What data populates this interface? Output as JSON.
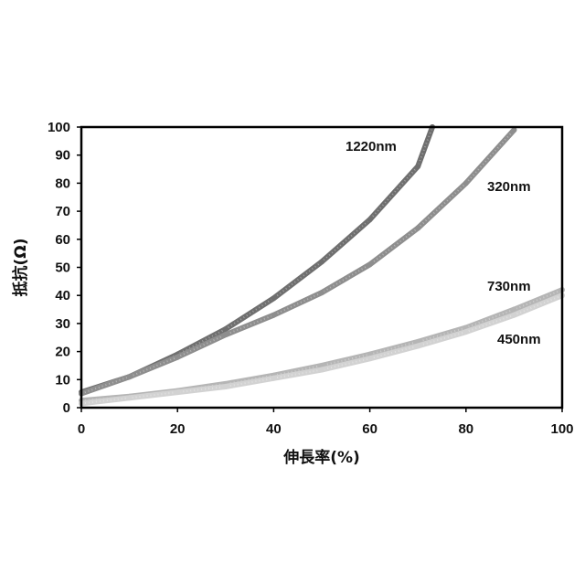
{
  "chart_data": {
    "type": "line",
    "title": "",
    "xlabel": "伸長率(%)",
    "ylabel": "抵抗(Ω)",
    "xlim": [
      0,
      100
    ],
    "ylim": [
      0,
      100
    ],
    "xticks": [
      "0",
      "20",
      "40",
      "60",
      "80",
      "100"
    ],
    "yticks": [
      "0",
      "10",
      "20",
      "30",
      "40",
      "50",
      "60",
      "70",
      "80",
      "90",
      "100"
    ],
    "grid": false,
    "legend": "none",
    "series": [
      {
        "name": "1220nm",
        "color": "#6f6f6f",
        "x": [
          0,
          10,
          20,
          30,
          40,
          50,
          60,
          70,
          73
        ],
        "y": [
          5.5,
          11,
          19,
          28,
          39,
          52,
          67,
          86,
          100
        ]
      },
      {
        "name": "320nm",
        "color": "#8e8e8e",
        "x": [
          0,
          10,
          20,
          30,
          40,
          50,
          60,
          70,
          80,
          90
        ],
        "y": [
          5,
          11,
          18,
          26,
          33,
          41,
          51,
          64,
          80,
          99
        ]
      },
      {
        "name": "730nm",
        "color": "#b5b5b5",
        "x": [
          0,
          10,
          20,
          30,
          40,
          50,
          60,
          70,
          80,
          90,
          100
        ],
        "y": [
          2.5,
          4,
          6,
          8.5,
          11.5,
          15,
          19,
          23.5,
          28.5,
          35,
          42
        ]
      },
      {
        "name": "450nm",
        "color": "#d2d2d2",
        "x": [
          0,
          10,
          20,
          30,
          40,
          50,
          60,
          70,
          80,
          90,
          100
        ],
        "y": [
          1.5,
          3.5,
          5.5,
          7.5,
          10.5,
          13.5,
          17.5,
          22,
          27,
          33,
          40
        ]
      }
    ]
  }
}
